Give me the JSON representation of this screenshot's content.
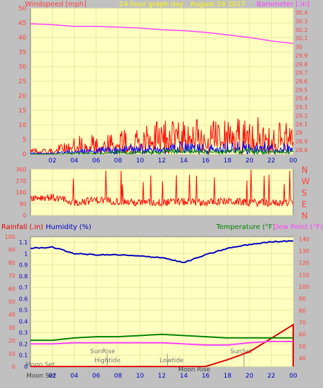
{
  "title": "24 hour graph day . August 29 2017",
  "colors": {
    "background": "#c0c0c0",
    "plot_bg": "#ffffc0",
    "grid": "#e8e8a0",
    "axis_red": "#ff4040",
    "wind": "#ff0000",
    "gust": "#0000ff",
    "avg": "#008000",
    "barometer": "#ff40ff",
    "humidity": "#0000c0",
    "temperature": "#008000",
    "dewpoint": "#ff40ff",
    "rainfall": "#e00000",
    "title_yellow": "#ffff00"
  },
  "top_panel": {
    "left_label": "Windspeed [mph]",
    "right_label": "Barometer [.in]",
    "left_ticks": [
      "50",
      "45",
      "40",
      "35",
      "30",
      "25",
      "20",
      "15",
      "10",
      "5",
      "0"
    ],
    "right_ticks": [
      "30.4",
      "30.3",
      "30.2",
      "30.1",
      "30",
      "29.9",
      "29.8",
      "29.7",
      "29.6",
      "29.5",
      "29.4",
      "29.3",
      "29.2",
      "29.1",
      "29",
      "28.9",
      "28.8"
    ],
    "x_ticks": [
      "02",
      "04",
      "06",
      "08",
      "10",
      "12",
      "14",
      "16",
      "18",
      "20",
      "22",
      "00"
    ]
  },
  "direction_panel": {
    "left_ticks": [
      "360",
      "270",
      "180",
      "90",
      "0"
    ],
    "compass": [
      "N",
      "W",
      "S",
      "E",
      "N"
    ]
  },
  "bottom_panel": {
    "rain_label": "Rainfall (.in)",
    "humidity_label": "Humidity (%)",
    "temp_label": "Temperature (°F)",
    "dew_label": "Dew Point (°F)",
    "hum_ticks": [
      "100",
      "90",
      "80",
      "70",
      "60",
      "50",
      "40",
      "30",
      "20",
      "10",
      "0"
    ],
    "rain_ticks": [
      "1.1",
      "1",
      "0.9",
      "0.8",
      "0.7",
      "0.6",
      "0.5",
      "0.4",
      "0.3",
      "0.2",
      "0.1",
      "0"
    ],
    "temp_ticks": [
      "140",
      "130",
      "120",
      "110",
      "100",
      "90",
      "80",
      "70",
      "60",
      "50",
      "40"
    ],
    "x_ticks": [
      "02",
      "04",
      "06",
      "08",
      "10",
      "12",
      "14",
      "16",
      "18",
      "20",
      "22",
      "00"
    ],
    "annotations": {
      "moonset_inside": "Moon Set",
      "moonset_axis": "Moon Set",
      "sunrise": "SunRise",
      "hightide": "Hightide",
      "lowtide": "Lowtide",
      "moonrise": "Moon Rise",
      "sunset": "SunSet"
    }
  },
  "chart_data": [
    {
      "type": "line",
      "title": "24 hour graph day . August 29 2017",
      "ylabel": "Windspeed [mph]",
      "y2label": "Barometer [.in]",
      "x_ticks": [
        "02",
        "04",
        "06",
        "08",
        "10",
        "12",
        "14",
        "16",
        "18",
        "20",
        "22",
        "00"
      ],
      "x": [
        0,
        2,
        4,
        6,
        8,
        10,
        12,
        14,
        16,
        18,
        20,
        22,
        24
      ],
      "ylim": [
        0,
        50
      ],
      "y2lim": [
        28.75,
        30.45
      ],
      "series": [
        {
          "name": "Windspeed [mph]",
          "role": "wind",
          "axis": "left",
          "values": [
            1.5,
            1.5,
            4,
            5,
            5.5,
            7,
            8,
            8.5,
            8,
            8.5,
            9,
            8.5,
            7
          ]
        },
        {
          "axis": "left",
          "values": [
            0.5,
            0.5,
            1.5,
            2,
            2.5,
            3,
            3.5,
            3.5,
            3,
            3.5,
            4,
            3.5,
            3
          ]
        },
        {
          "axis": "left",
          "values": [
            0,
            0,
            0.5,
            0.5,
            1,
            1,
            1.5,
            1.5,
            1.5,
            1.5,
            2,
            1.5,
            1
          ]
        },
        {
          "name": "Barometer [.in]",
          "axis": "right",
          "values": [
            30.27,
            30.26,
            30.24,
            30.24,
            30.23,
            30.22,
            30.2,
            30.19,
            30.17,
            30.14,
            30.11,
            30.07,
            30.04
          ]
        }
      ]
    },
    {
      "type": "scatter",
      "ylim": [
        0,
        360
      ],
      "y_ticks": [
        0,
        90,
        180,
        270,
        360
      ],
      "x": [
        0,
        2,
        4,
        6,
        8,
        10,
        12,
        14,
        16,
        18,
        20,
        22,
        24
      ],
      "series": [
        {
          "values": [
            140,
            140,
            100,
            120,
            110,
            95,
            100,
            105,
            100,
            110,
            100,
            95,
            100
          ]
        }
      ]
    },
    {
      "type": "line",
      "ylabel": "Rainfall (.in) / Humidity (%)",
      "y2label": "Temperature (°F) / Dew Point (°F)",
      "x_ticks": [
        "02",
        "04",
        "06",
        "08",
        "10",
        "12",
        "14",
        "16",
        "18",
        "20",
        "22",
        "00"
      ],
      "x": [
        0,
        2,
        4,
        6,
        8,
        10,
        12,
        14,
        16,
        18,
        20,
        22,
        24
      ],
      "ylim_humidity": [
        0,
        100
      ],
      "ylim_rain": [
        0,
        1.15
      ],
      "y2lim": [
        33,
        142
      ],
      "series": [
        {
          "name": "Humidity (%)",
          "axis": "left",
          "values": [
            91,
            92,
            87,
            86,
            86,
            85,
            84,
            80,
            86,
            91,
            94,
            96,
            97
          ]
        },
        {
          "name": "Rainfall (.in)",
          "axis": "rain",
          "values": [
            0,
            0,
            0,
            0,
            0,
            0,
            0,
            0,
            0,
            0.06,
            0.13,
            0.25,
            0.37
          ]
        },
        {
          "name": "Temperature (°F)",
          "axis": "right",
          "values": [
            55,
            55,
            57,
            58,
            58,
            59,
            60,
            59,
            58,
            57,
            57,
            57,
            57
          ]
        },
        {
          "name": "Dew Point (°F)",
          "axis": "right",
          "values": [
            52,
            52,
            53,
            53,
            53,
            53,
            53,
            52,
            51,
            51,
            53,
            54,
            54
          ]
        }
      ]
    }
  ]
}
